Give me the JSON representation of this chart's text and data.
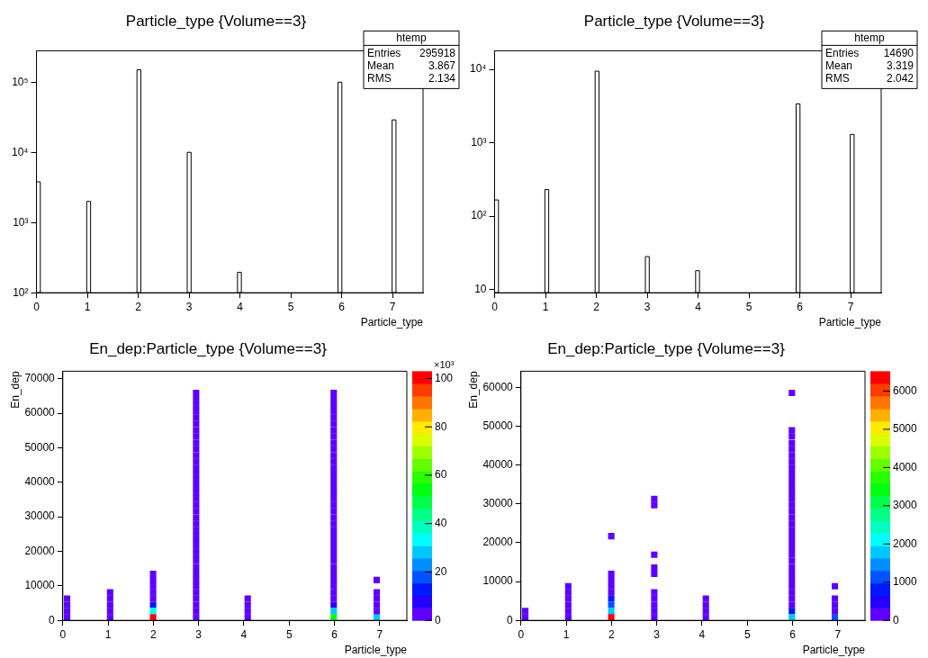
{
  "chart_data": [
    {
      "type": "histogram",
      "title": "Particle_type {Volume==3}",
      "xlabel": "Particle_type",
      "color": "#000000",
      "log": "y",
      "bins": [
        0,
        0.076,
        0.988,
        1.064,
        1.976,
        2.052,
        2.964,
        3.04,
        3.952,
        4.028,
        5.928,
        6.004,
        6.992,
        7.068
      ],
      "values": [
        3800,
        null,
        2000,
        null,
        150000,
        null,
        10000,
        null,
        195,
        null,
        100000,
        null,
        29000
      ],
      "xlim": [
        0,
        7.6
      ],
      "xticks": [
        0,
        1,
        2,
        3,
        4,
        5,
        6,
        7
      ],
      "ylim": [
        100,
        280000
      ],
      "yticks": [
        {
          "value": 100,
          "label": "10²"
        },
        {
          "value": 1000,
          "label": "10³"
        },
        {
          "value": 10000,
          "label": "10⁴"
        },
        {
          "value": 100000,
          "label": "10⁵"
        }
      ],
      "annotations": [
        "htemp",
        "Entries",
        "295918",
        "Mean",
        "3.867",
        "RMS",
        "2.134"
      ]
    },
    {
      "type": "histogram",
      "title": "Particle_type {Volume==3}",
      "xlabel": "Particle_type",
      "color": "#000000",
      "log": "y",
      "bins": [
        0,
        0.076,
        0.988,
        1.064,
        1.976,
        2.052,
        2.964,
        3.04,
        3.952,
        4.028,
        5.928,
        6.004,
        6.992,
        7.068
      ],
      "values": [
        166,
        null,
        230,
        null,
        9500,
        null,
        28,
        null,
        18,
        null,
        3400,
        null,
        1300
      ],
      "xlim": [
        0,
        7.6
      ],
      "xticks": [
        0,
        1,
        2,
        3,
        4,
        5,
        6,
        7
      ],
      "ylim": [
        9,
        18000
      ],
      "yticks": [
        {
          "value": 10,
          "label": "10"
        },
        {
          "value": 100,
          "label": "10²"
        },
        {
          "value": 1000,
          "label": "10³"
        },
        {
          "value": 10000,
          "label": "10⁴"
        }
      ],
      "annotations": [
        "htemp",
        "Entries",
        "14690",
        "Mean",
        "3.319",
        "RMS",
        "2.042"
      ]
    },
    {
      "type": "scatter",
      "title": "En_dep:Particle_type {Volume==3}",
      "xlabel": "Particle_type",
      "ylabel": "En_dep",
      "marker": "square",
      "series": [
        {
          "x": [
            0.095,
            0.095,
            0.095,
            0.095
          ],
          "values": [
            900,
            2700,
            4500,
            6300
          ],
          "cvalues": [
            2,
            2,
            2,
            2
          ]
        },
        {
          "x": [
            1.045,
            1.045,
            1.045,
            1.045,
            1.045
          ],
          "values": [
            900,
            2700,
            4500,
            6300,
            8100
          ],
          "cvalues": [
            2,
            2,
            2,
            2,
            2
          ]
        },
        {
          "x": [
            1.995,
            1.995,
            1.995,
            1.995,
            1.995
          ],
          "values": [
            6300,
            8100,
            9900,
            11700,
            13500
          ],
          "cvalues": [
            2,
            2,
            2,
            2,
            2
          ]
        },
        {
          "x": [
            1.995
          ],
          "values": [
            900
          ],
          "cvalues": [
            100
          ]
        },
        {
          "x": [
            1.995
          ],
          "values": [
            2700
          ],
          "cvalues": [
            33
          ]
        },
        {
          "x": [
            1.995
          ],
          "values": [
            4500
          ],
          "cvalues": [
            12
          ]
        },
        {
          "x": [
            2.945,
            2.945,
            2.945,
            2.945,
            2.945,
            2.945,
            2.945,
            2.945,
            2.945,
            2.945,
            2.945,
            2.945,
            2.945,
            2.945,
            2.945,
            2.945,
            2.945,
            2.945,
            2.945,
            2.945,
            2.945,
            2.945,
            2.945,
            2.945,
            2.945,
            2.945,
            2.945,
            2.945,
            2.945,
            2.945,
            2.945,
            2.945,
            2.945,
            2.945,
            2.945,
            2.945,
            2.945
          ],
          "values": [
            900,
            2700,
            4500,
            6300,
            8100,
            9900,
            11700,
            13500,
            15300,
            17200,
            19000,
            20800,
            22600,
            24400,
            26200,
            28000,
            29800,
            31600,
            33400,
            35200,
            37000,
            38800,
            40600,
            42400,
            44200,
            46000,
            47800,
            49600,
            51400,
            53300,
            55100,
            56900,
            58700,
            60500,
            62300,
            64100,
            65900
          ],
          "cvalues": [
            2,
            2,
            2,
            2,
            2,
            2,
            2,
            2,
            2,
            2,
            2,
            2,
            2,
            2,
            2,
            2,
            2,
            2,
            2,
            2,
            2,
            2,
            2,
            2,
            2,
            2,
            2,
            2,
            2,
            2,
            2,
            2,
            2,
            2,
            2,
            2,
            2
          ]
        },
        {
          "x": [
            4.085,
            4.085,
            4.085,
            4.085
          ],
          "values": [
            900,
            2700,
            4500,
            6300
          ],
          "cvalues": [
            2,
            2,
            2,
            2
          ]
        },
        {
          "x": [
            5.985,
            5.985,
            5.985,
            5.985,
            5.985,
            5.985,
            5.985,
            5.985,
            5.985,
            5.985,
            5.985,
            5.985,
            5.985,
            5.985,
            5.985,
            5.985,
            5.985,
            5.985,
            5.985,
            5.985,
            5.985,
            5.985,
            5.985,
            5.985,
            5.985,
            5.985,
            5.985,
            5.985,
            5.985,
            5.985,
            5.985,
            5.985,
            5.985,
            5.985
          ],
          "values": [
            6300,
            8100,
            9900,
            11700,
            13500,
            15300,
            17200,
            19000,
            20800,
            22600,
            24400,
            26200,
            28000,
            29800,
            31600,
            33400,
            35200,
            37000,
            38800,
            40600,
            42400,
            44200,
            46000,
            47800,
            49600,
            51400,
            53300,
            55100,
            56900,
            58700,
            60500,
            62300,
            64100,
            65900
          ],
          "cvalues": [
            2,
            2,
            2,
            2,
            2,
            2,
            2,
            2,
            2,
            2,
            2,
            2,
            2,
            2,
            2,
            2,
            2,
            2,
            2,
            2,
            2,
            2,
            2,
            2,
            2,
            2,
            2,
            2,
            2,
            2,
            2,
            2,
            2,
            2
          ]
        },
        {
          "x": [
            5.985
          ],
          "values": [
            900
          ],
          "cvalues": [
            53
          ]
        },
        {
          "x": [
            5.985
          ],
          "values": [
            2700
          ],
          "cvalues": [
            27
          ]
        },
        {
          "x": [
            5.985
          ],
          "values": [
            4500
          ],
          "cvalues": [
            7
          ]
        },
        {
          "x": [
            6.935,
            6.935,
            6.935,
            6.935,
            6.935
          ],
          "values": [
            2700,
            4500,
            6300,
            8100,
            11700
          ],
          "cvalues": [
            2,
            2,
            2,
            2,
            2
          ]
        },
        {
          "x": [
            6.935
          ],
          "values": [
            900
          ],
          "cvalues": [
            30
          ]
        }
      ],
      "xlim": [
        0,
        7.6
      ],
      "xticks": [
        0,
        1,
        2,
        3,
        4,
        5,
        6,
        7
      ],
      "ylim": [
        0,
        72200
      ],
      "yticks": [
        0,
        10000,
        20000,
        30000,
        40000,
        50000,
        60000,
        70000
      ],
      "clim": [
        0,
        103
      ],
      "cticks": [
        0,
        20,
        40,
        60,
        80,
        100
      ],
      "annotations": [
        "×10³"
      ]
    },
    {
      "type": "scatter",
      "title": "En_dep:Particle_type {Volume==3}",
      "xlabel": "Particle_type",
      "ylabel": "En_dep",
      "marker": "square",
      "series": [
        {
          "x": [
            0.095,
            0.095
          ],
          "values": [
            800,
            2400
          ],
          "cvalues": [
            200,
            200
          ]
        },
        {
          "x": [
            1.045,
            1.045,
            1.045,
            1.045,
            1.045,
            1.045
          ],
          "values": [
            800,
            2400,
            4000,
            5600,
            7200,
            8800
          ],
          "cvalues": [
            200,
            200,
            200,
            200,
            200,
            200
          ]
        },
        {
          "x": [
            1.995,
            1.995,
            1.995,
            1.995,
            1.995
          ],
          "values": [
            7200,
            8800,
            10400,
            12000,
            21700
          ],
          "cvalues": [
            200,
            200,
            200,
            200,
            200
          ]
        },
        {
          "x": [
            1.995
          ],
          "values": [
            800
          ],
          "cvalues": [
            6400
          ]
        },
        {
          "x": [
            1.995
          ],
          "values": [
            2400
          ],
          "cvalues": [
            1700
          ]
        },
        {
          "x": [
            1.995
          ],
          "values": [
            4000
          ],
          "cvalues": [
            1100
          ]
        },
        {
          "x": [
            1.995
          ],
          "values": [
            5600
          ],
          "cvalues": [
            700
          ]
        },
        {
          "x": [
            2.945,
            2.945,
            2.945,
            2.945,
            2.945,
            2.945,
            2.945,
            2.945,
            2.945,
            2.945
          ],
          "values": [
            800,
            2400,
            4000,
            5600,
            7200,
            12000,
            13600,
            16900,
            29700,
            31300
          ],
          "cvalues": [
            200,
            200,
            200,
            200,
            200,
            200,
            200,
            200,
            200,
            200
          ]
        },
        {
          "x": [
            4.085,
            4.085,
            4.085,
            4.085
          ],
          "values": [
            800,
            2400,
            4000,
            5600
          ],
          "cvalues": [
            200,
            200,
            200,
            200
          ]
        },
        {
          "x": [
            5.985,
            5.985,
            5.985,
            5.985,
            5.985,
            5.985,
            5.985,
            5.985,
            5.985,
            5.985,
            5.985,
            5.985,
            5.985,
            5.985,
            5.985,
            5.985,
            5.985,
            5.985,
            5.985,
            5.985,
            5.985,
            5.985,
            5.985,
            5.985,
            5.985,
            5.985,
            5.985,
            5.985,
            5.985,
            5.985
          ],
          "values": [
            4000,
            5600,
            7200,
            8800,
            10400,
            12000,
            13600,
            15300,
            16900,
            18500,
            20100,
            21700,
            23300,
            24900,
            26500,
            28100,
            29700,
            31300,
            32900,
            34500,
            36100,
            37700,
            39300,
            40900,
            42500,
            44100,
            45700,
            47400,
            49000,
            58600
          ],
          "cvalues": [
            200,
            200,
            200,
            200,
            200,
            200,
            200,
            200,
            200,
            200,
            200,
            200,
            200,
            200,
            200,
            200,
            200,
            200,
            200,
            200,
            200,
            200,
            200,
            200,
            200,
            200,
            200,
            200,
            200,
            200
          ]
        },
        {
          "x": [
            5.985
          ],
          "values": [
            800
          ],
          "cvalues": [
            1700
          ]
        },
        {
          "x": [
            5.985
          ],
          "values": [
            2400
          ],
          "cvalues": [
            700
          ]
        },
        {
          "x": [
            6.935,
            6.935,
            6.935,
            6.935
          ],
          "values": [
            2400,
            4000,
            5600,
            8800
          ],
          "cvalues": [
            200,
            200,
            200,
            200
          ]
        },
        {
          "x": [
            6.935
          ],
          "values": [
            800
          ],
          "cvalues": [
            1200
          ]
        }
      ],
      "xlim": [
        0,
        7.6
      ],
      "xticks": [
        0,
        1,
        2,
        3,
        4,
        5,
        6,
        7
      ],
      "ylim": [
        0,
        64200
      ],
      "yticks": [
        0,
        10000,
        20000,
        30000,
        40000,
        50000,
        60000
      ],
      "clim": [
        0,
        6520
      ],
      "cticks": [
        0,
        1000,
        2000,
        3000,
        4000,
        5000,
        6000
      ]
    }
  ]
}
